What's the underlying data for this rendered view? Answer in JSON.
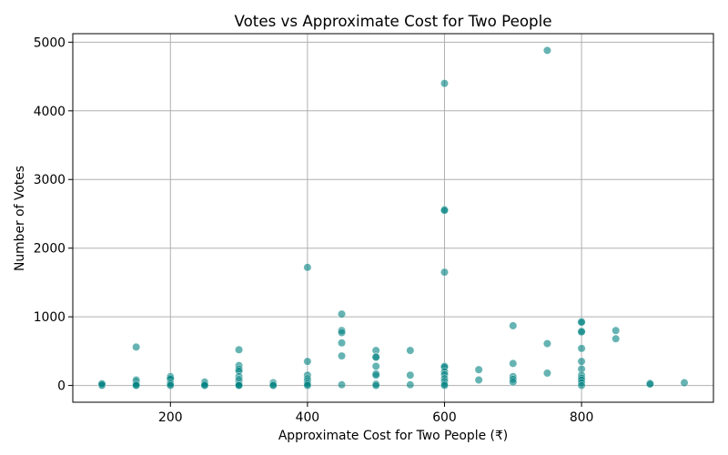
{
  "chart_data": {
    "type": "scatter",
    "title": "Votes vs Approximate Cost for Two People",
    "xlabel": "Approximate Cost for Two People (₹)",
    "ylabel": "Number of Votes",
    "xlim": [
      57.5,
      992.5
    ],
    "ylim": [
      -244,
      5124
    ],
    "xticks": [
      200,
      400,
      600,
      800
    ],
    "yticks": [
      0,
      1000,
      2000,
      3000,
      4000,
      5000
    ],
    "grid": true,
    "color": "#008080",
    "grid_color": "#b0b0b0",
    "points": [
      [
        100,
        0
      ],
      [
        100,
        5
      ],
      [
        100,
        25
      ],
      [
        150,
        560
      ],
      [
        150,
        80
      ],
      [
        150,
        60
      ],
      [
        150,
        30
      ],
      [
        150,
        10
      ],
      [
        150,
        0
      ],
      [
        200,
        130
      ],
      [
        200,
        110
      ],
      [
        200,
        90
      ],
      [
        200,
        40
      ],
      [
        200,
        20
      ],
      [
        200,
        0
      ],
      [
        250,
        50
      ],
      [
        250,
        30
      ],
      [
        250,
        10
      ],
      [
        250,
        0
      ],
      [
        300,
        520
      ],
      [
        300,
        290
      ],
      [
        300,
        240
      ],
      [
        300,
        210
      ],
      [
        300,
        130
      ],
      [
        300,
        90
      ],
      [
        300,
        70
      ],
      [
        300,
        40
      ],
      [
        300,
        20
      ],
      [
        300,
        5
      ],
      [
        300,
        0
      ],
      [
        350,
        40
      ],
      [
        350,
        10
      ],
      [
        350,
        0
      ],
      [
        400,
        1720
      ],
      [
        400,
        350
      ],
      [
        400,
        150
      ],
      [
        400,
        100
      ],
      [
        400,
        70
      ],
      [
        400,
        40
      ],
      [
        400,
        20
      ],
      [
        400,
        0
      ],
      [
        450,
        1040
      ],
      [
        450,
        800
      ],
      [
        450,
        770
      ],
      [
        450,
        620
      ],
      [
        450,
        430
      ],
      [
        450,
        10
      ],
      [
        500,
        510
      ],
      [
        500,
        420
      ],
      [
        500,
        410
      ],
      [
        500,
        280
      ],
      [
        500,
        170
      ],
      [
        500,
        150
      ],
      [
        500,
        20
      ],
      [
        500,
        0
      ],
      [
        550,
        510
      ],
      [
        550,
        150
      ],
      [
        550,
        10
      ],
      [
        600,
        4400
      ],
      [
        600,
        2560
      ],
      [
        600,
        2550
      ],
      [
        600,
        1650
      ],
      [
        600,
        280
      ],
      [
        600,
        270
      ],
      [
        600,
        200
      ],
      [
        600,
        160
      ],
      [
        600,
        100
      ],
      [
        600,
        60
      ],
      [
        600,
        20
      ],
      [
        600,
        0
      ],
      [
        650,
        230
      ],
      [
        650,
        80
      ],
      [
        700,
        870
      ],
      [
        700,
        320
      ],
      [
        700,
        130
      ],
      [
        700,
        90
      ],
      [
        700,
        50
      ],
      [
        750,
        4880
      ],
      [
        750,
        610
      ],
      [
        750,
        180
      ],
      [
        800,
        930
      ],
      [
        800,
        920
      ],
      [
        800,
        790
      ],
      [
        800,
        780
      ],
      [
        800,
        540
      ],
      [
        800,
        350
      ],
      [
        800,
        240
      ],
      [
        800,
        150
      ],
      [
        800,
        110
      ],
      [
        800,
        80
      ],
      [
        800,
        40
      ],
      [
        800,
        0
      ],
      [
        850,
        800
      ],
      [
        850,
        680
      ],
      [
        900,
        30
      ],
      [
        900,
        20
      ],
      [
        950,
        40
      ]
    ]
  }
}
